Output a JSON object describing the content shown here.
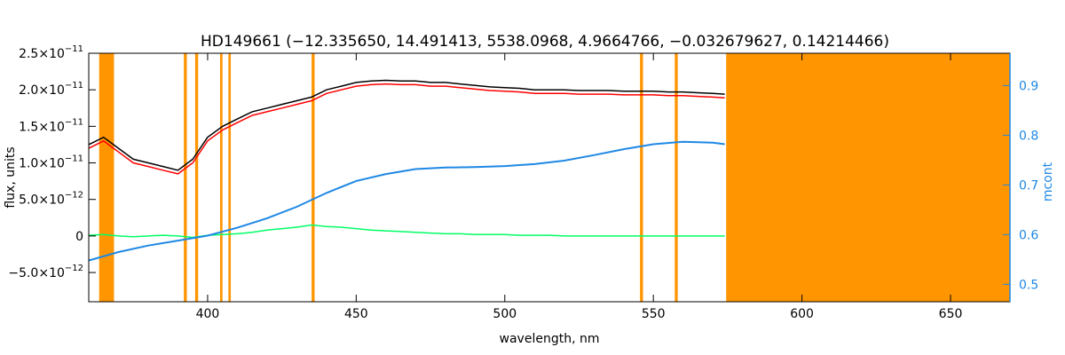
{
  "chart_data": {
    "type": "line",
    "title": "HD149661    (−12.335650, 14.491413, 5538.0968, 4.9664766, −0.032679627, 0.14214466)",
    "xlabel": "wavelength, nm",
    "ylabel": "flux, units",
    "y2label": "mcont",
    "xlim": [
      360,
      670
    ],
    "ylim": [
      -9e-12,
      2.5e-11
    ],
    "y2lim": [
      0.465,
      0.965
    ],
    "x_ticks": [
      400,
      450,
      500,
      550,
      600,
      650
    ],
    "x_tick_labels": [
      "400",
      "450",
      "500",
      "550",
      "600",
      "650"
    ],
    "y_ticks": [
      -5e-12,
      0,
      5e-12,
      1e-11,
      1.5e-11,
      2e-11,
      2.5e-11
    ],
    "y_tick_mantissa": [
      "−5.0×10",
      "0",
      "5.0×10",
      "1.0×10",
      "1.5×10",
      "2.0×10",
      "2.5×10"
    ],
    "y_tick_exponent": [
      "−12",
      "",
      "−12",
      "−11",
      "−11",
      "−11",
      "−11"
    ],
    "y2_ticks": [
      0.5,
      0.6,
      0.7,
      0.8,
      0.9
    ],
    "y2_tick_labels": [
      "0.5",
      "0.6",
      "0.7",
      "0.8",
      "0.9"
    ],
    "masked_regions": [
      [
        363.5,
        368.5
      ],
      [
        392.0,
        393.0
      ],
      [
        395.8,
        396.8
      ],
      [
        404.2,
        405.0
      ],
      [
        407.0,
        407.8
      ],
      [
        435.0,
        436.0
      ],
      [
        545.5,
        546.5
      ],
      [
        557.2,
        558.2
      ],
      [
        574.5,
        670
      ]
    ],
    "series": [
      {
        "role": "observed flux",
        "color": "#000000",
        "x": [
          360,
          365,
          370,
          375,
          380,
          385,
          390,
          395,
          400,
          405,
          410,
          415,
          420,
          425,
          430,
          435,
          440,
          445,
          450,
          455,
          460,
          465,
          470,
          475,
          480,
          485,
          490,
          495,
          500,
          505,
          510,
          515,
          520,
          525,
          530,
          535,
          540,
          545,
          550,
          555,
          560,
          565,
          570,
          574
        ],
        "y": [
          1.25e-11,
          1.35e-11,
          1.2e-11,
          1.05e-11,
          1e-11,
          9.5e-12,
          9e-12,
          1.05e-11,
          1.35e-11,
          1.5e-11,
          1.6e-11,
          1.7e-11,
          1.75e-11,
          1.8e-11,
          1.85e-11,
          1.9e-11,
          2e-11,
          2.05e-11,
          2.1e-11,
          2.12e-11,
          2.13e-11,
          2.12e-11,
          2.12e-11,
          2.1e-11,
          2.1e-11,
          2.08e-11,
          2.06e-11,
          2.04e-11,
          2.03e-11,
          2.02e-11,
          2e-11,
          2e-11,
          2e-11,
          1.99e-11,
          1.99e-11,
          1.99e-11,
          1.98e-11,
          1.98e-11,
          1.98e-11,
          1.97e-11,
          1.97e-11,
          1.96e-11,
          1.95e-11,
          1.94e-11
        ]
      },
      {
        "role": "model fit",
        "color": "#FF0000",
        "x": [
          360,
          365,
          370,
          375,
          380,
          385,
          390,
          395,
          400,
          405,
          410,
          415,
          420,
          425,
          430,
          435,
          440,
          445,
          450,
          455,
          460,
          465,
          470,
          475,
          480,
          485,
          490,
          495,
          500,
          505,
          510,
          515,
          520,
          525,
          530,
          535,
          540,
          545,
          550,
          555,
          560,
          565,
          570,
          574
        ],
        "y": [
          1.2e-11,
          1.3e-11,
          1.15e-11,
          1e-11,
          9.5e-12,
          9e-12,
          8.5e-12,
          1e-11,
          1.3e-11,
          1.45e-11,
          1.55e-11,
          1.65e-11,
          1.7e-11,
          1.75e-11,
          1.8e-11,
          1.85e-11,
          1.95e-11,
          2e-11,
          2.05e-11,
          2.07e-11,
          2.08e-11,
          2.07e-11,
          2.07e-11,
          2.05e-11,
          2.05e-11,
          2.03e-11,
          2.01e-11,
          1.99e-11,
          1.98e-11,
          1.97e-11,
          1.95e-11,
          1.95e-11,
          1.95e-11,
          1.94e-11,
          1.94e-11,
          1.94e-11,
          1.93e-11,
          1.93e-11,
          1.93e-11,
          1.92e-11,
          1.92e-11,
          1.91e-11,
          1.9e-11,
          1.89e-11
        ]
      },
      {
        "role": "residuals",
        "color": "#00FF66",
        "x": [
          360,
          365,
          370,
          375,
          380,
          385,
          390,
          395,
          400,
          405,
          410,
          415,
          420,
          425,
          430,
          435,
          440,
          445,
          450,
          455,
          460,
          465,
          470,
          475,
          480,
          485,
          490,
          495,
          500,
          505,
          510,
          515,
          520,
          525,
          530,
          535,
          540,
          545,
          550,
          555,
          560,
          565,
          570,
          574
        ],
        "y": [
          1e-13,
          2e-13,
          0.0,
          -1e-13,
          0.0,
          1e-13,
          0.0,
          -2e-13,
          1e-13,
          2e-13,
          3e-13,
          5e-13,
          8e-13,
          1e-12,
          1.2e-12,
          1.5e-12,
          1.3e-12,
          1.2e-12,
          1e-12,
          8e-13,
          7e-13,
          6e-13,
          5e-13,
          4e-13,
          3e-13,
          3e-13,
          2e-13,
          2e-13,
          2e-13,
          1e-13,
          1e-13,
          1e-13,
          0.0,
          0.0,
          0.0,
          0.0,
          0.0,
          0.0,
          0.0,
          0.0,
          0.0,
          0.0,
          0.0,
          0.0
        ]
      },
      {
        "role": "continuum (right axis)",
        "color": "#1E88E5",
        "axis": "right",
        "x": [
          360,
          370,
          380,
          390,
          400,
          410,
          420,
          430,
          440,
          450,
          460,
          470,
          480,
          490,
          500,
          510,
          520,
          530,
          540,
          550,
          560,
          570,
          574
        ],
        "y": [
          0.548,
          0.565,
          0.578,
          0.588,
          0.598,
          0.614,
          0.633,
          0.656,
          0.684,
          0.708,
          0.722,
          0.732,
          0.735,
          0.736,
          0.738,
          0.742,
          0.749,
          0.76,
          0.772,
          0.782,
          0.787,
          0.785,
          0.782
        ]
      }
    ]
  }
}
